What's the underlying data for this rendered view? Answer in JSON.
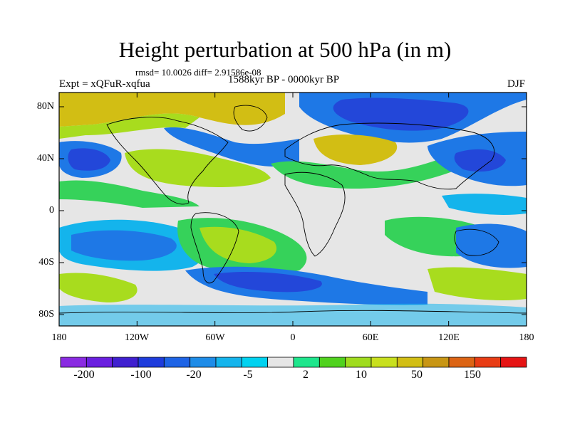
{
  "title": "Height perturbation at 500 hPa (in m)",
  "stats": "rmsd= 10.0026 diff= 2.91586e-08",
  "expt": "Expt = xQFuR-xqfua",
  "period": "1588kyr BP - 0000kyr BP",
  "season": "DJF",
  "lat_labels": [
    "80N",
    "40N",
    "0",
    "40S",
    "80S"
  ],
  "lon_labels": [
    "180",
    "120W",
    "60W",
    "0",
    "60E",
    "120E",
    "180"
  ],
  "colorbar": {
    "labels": [
      "-200",
      "-100",
      "-20",
      "-5",
      "2",
      "10",
      "50",
      "150"
    ],
    "colors": [
      "#8a2be2",
      "#6a1fe0",
      "#4020d0",
      "#1e3cdc",
      "#1e64e6",
      "#1e8ce8",
      "#14b4ec",
      "#00d2f0",
      "#e6e6e6",
      "#1ee68c",
      "#50d21e",
      "#a0dc1e",
      "#c8e01e",
      "#d2be14",
      "#c89614",
      "#dc6414",
      "#e83c14",
      "#e61414"
    ]
  },
  "palette": {
    "blue_deep": "#2347d9",
    "blue_mid": "#1e78e6",
    "blue_light": "#14b4ec",
    "neutral": "#e6e6e6",
    "green": "#36d25a",
    "yellowgreen": "#a8dc1e",
    "yellow": "#d2be14"
  }
}
